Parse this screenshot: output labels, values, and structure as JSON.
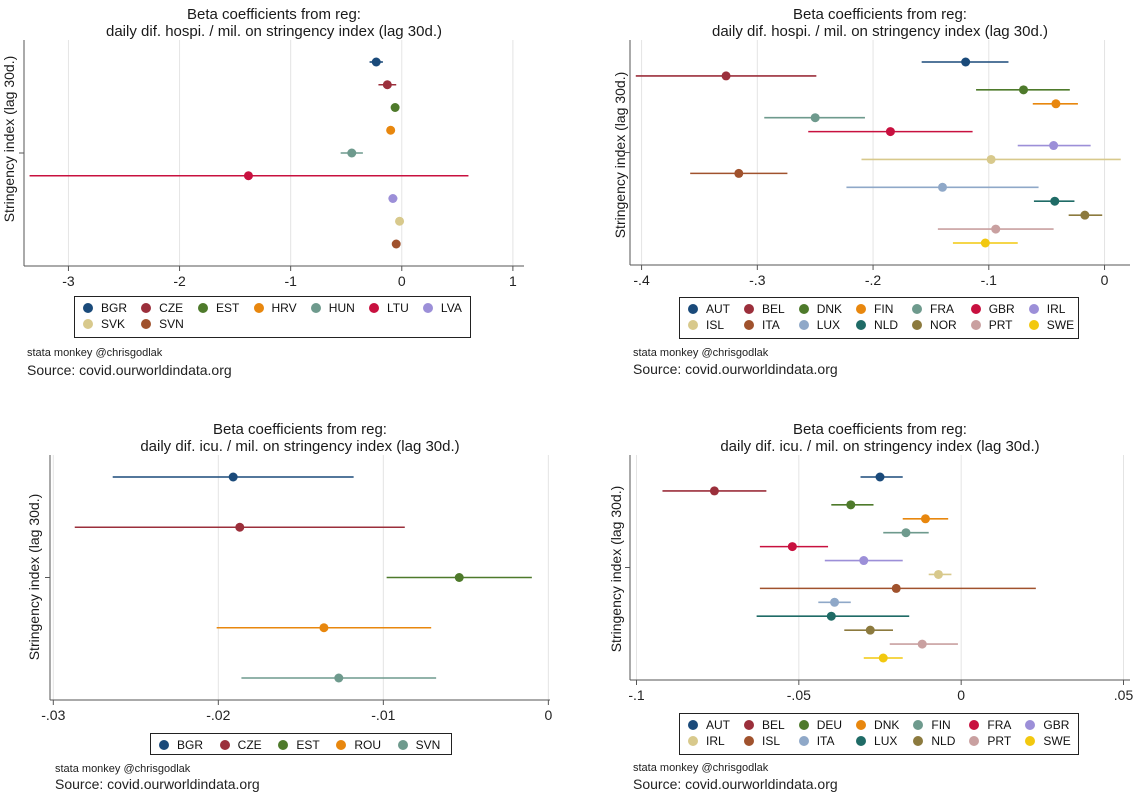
{
  "charts": [
    {
      "title_line1": "Beta coefficients from reg:",
      "title_line2": "daily dif. hospi. / mil. on stringency index (lag 30d.)",
      "ylabel": "Stringency index (lag 30d.)",
      "credit": "stata monkey @chrisgodlak",
      "source": "Source: covid.ourworldindata.org"
    },
    {
      "title_line1": "Beta coefficients from reg:",
      "title_line2": "daily dif. hospi. / mil. on stringency index (lag 30d.)",
      "ylabel": "Stringency index (lag 30d.)",
      "credit": "stata monkey @chrisgodlak",
      "source": "Source: covid.ourworldindata.org"
    },
    {
      "title_line1": "Beta coefficients from reg:",
      "title_line2": "daily dif. icu. / mil. on stringency index (lag 30d.)",
      "ylabel": "Stringency index (lag 30d.)",
      "credit": "stata monkey @chrisgodlak",
      "source": "Source: covid.ourworldindata.org"
    },
    {
      "title_line1": "Beta coefficients from reg:",
      "title_line2": "daily dif. icu. / mil. on stringency index (lag 30d.)",
      "ylabel": "Stringency index (lag 30d.)",
      "credit": "stata monkey @chrisgodlak",
      "source": "Source: covid.ourworldindata.org"
    }
  ],
  "chart_data": [
    {
      "type": "scatter",
      "title": "Beta coefficients from reg: daily dif. hospi. / mil. on stringency index (lag 30d.)",
      "ylabel": "Stringency index (lag 30d.)",
      "xlim": [
        -3.4,
        1.1
      ],
      "xticks": [
        -3,
        -2,
        -1,
        0,
        1
      ],
      "tick_labels": [
        "-3",
        "-2",
        "-1",
        "0",
        "1"
      ],
      "legend_placement": "bottom",
      "legend_columns": 7,
      "series": [
        {
          "name": "BGR",
          "color": "#1a4a7a",
          "estimate": -0.23,
          "ci": [
            -0.29,
            -0.17
          ]
        },
        {
          "name": "CZE",
          "color": "#9b2f3b",
          "estimate": -0.13,
          "ci": [
            -0.21,
            -0.05
          ]
        },
        {
          "name": "EST",
          "color": "#4e7a2b",
          "estimate": -0.06,
          "ci": [
            -0.09,
            -0.03
          ]
        },
        {
          "name": "HRV",
          "color": "#e8870e",
          "estimate": -0.1,
          "ci": [
            -0.13,
            -0.07
          ]
        },
        {
          "name": "HUN",
          "color": "#6e9a8d",
          "estimate": -0.45,
          "ci": [
            -0.55,
            -0.35
          ]
        },
        {
          "name": "LTU",
          "color": "#c8103f",
          "estimate": -1.38,
          "ci": [
            -3.35,
            0.6
          ]
        },
        {
          "name": "LVA",
          "color": "#9c8fd8",
          "estimate": -0.08,
          "ci": [
            -0.12,
            -0.04
          ]
        },
        {
          "name": "SVK",
          "color": "#d8c98c",
          "estimate": -0.02,
          "ci": [
            -0.04,
            0.0
          ]
        },
        {
          "name": "SVN",
          "color": "#a0522d",
          "estimate": -0.05,
          "ci": [
            -0.07,
            -0.03
          ]
        }
      ]
    },
    {
      "type": "scatter",
      "title": "Beta coefficients from reg: daily dif. hospi. / mil. on stringency index (lag 30d.)",
      "ylabel": "Stringency index (lag 30d.)",
      "xlim": [
        -0.41,
        0.022
      ],
      "xticks": [
        -0.4,
        -0.3,
        -0.2,
        -0.1,
        0
      ],
      "tick_labels": [
        "-.4",
        "-.3",
        "-.2",
        "-.1",
        "0"
      ],
      "legend_placement": "bottom",
      "legend_columns": 7,
      "series": [
        {
          "name": "AUT",
          "color": "#1a4a7a",
          "estimate": -0.12,
          "ci": [
            -0.158,
            -0.083
          ]
        },
        {
          "name": "BEL",
          "color": "#9b2f3b",
          "estimate": -0.327,
          "ci": [
            -0.405,
            -0.249
          ]
        },
        {
          "name": "DNK",
          "color": "#4e7a2b",
          "estimate": -0.07,
          "ci": [
            -0.111,
            -0.03
          ]
        },
        {
          "name": "FIN",
          "color": "#e8870e",
          "estimate": -0.042,
          "ci": [
            -0.062,
            -0.023
          ]
        },
        {
          "name": "FRA",
          "color": "#6e9a8d",
          "estimate": -0.25,
          "ci": [
            -0.294,
            -0.207
          ]
        },
        {
          "name": "GBR",
          "color": "#c8103f",
          "estimate": -0.185,
          "ci": [
            -0.256,
            -0.114
          ]
        },
        {
          "name": "IRL",
          "color": "#9c8fd8",
          "estimate": -0.044,
          "ci": [
            -0.075,
            -0.012
          ]
        },
        {
          "name": "ISL",
          "color": "#d8c98c",
          "estimate": -0.098,
          "ci": [
            -0.21,
            0.014
          ]
        },
        {
          "name": "ITA",
          "color": "#a0522d",
          "estimate": -0.316,
          "ci": [
            -0.358,
            -0.274
          ]
        },
        {
          "name": "LUX",
          "color": "#8fa8c8",
          "estimate": -0.14,
          "ci": [
            -0.223,
            -0.057
          ]
        },
        {
          "name": "NLD",
          "color": "#1f6b66",
          "estimate": -0.043,
          "ci": [
            -0.061,
            -0.026
          ]
        },
        {
          "name": "NOR",
          "color": "#8c7a3e",
          "estimate": -0.017,
          "ci": [
            -0.031,
            -0.002
          ]
        },
        {
          "name": "PRT",
          "color": "#c9a0a0",
          "estimate": -0.094,
          "ci": [
            -0.144,
            -0.044
          ]
        },
        {
          "name": "SWE",
          "color": "#f2c80f",
          "estimate": -0.103,
          "ci": [
            -0.131,
            -0.075
          ]
        }
      ]
    },
    {
      "type": "scatter",
      "title": "Beta coefficients from reg: daily dif. icu. / mil. on stringency index (lag 30d.)",
      "ylabel": "Stringency index (lag 30d.)",
      "xlim": [
        -0.0302,
        0.0001
      ],
      "xticks": [
        -0.03,
        -0.02,
        -0.01,
        0
      ],
      "tick_labels": [
        "-.03",
        "-.02",
        "-.01",
        "0"
      ],
      "legend_placement": "bottom",
      "legend_columns": 5,
      "series": [
        {
          "name": "BGR",
          "color": "#1a4a7a",
          "estimate": -0.0191,
          "ci": [
            -0.0264,
            -0.0118
          ]
        },
        {
          "name": "CZE",
          "color": "#9b2f3b",
          "estimate": -0.0187,
          "ci": [
            -0.0287,
            -0.0087
          ]
        },
        {
          "name": "EST",
          "color": "#4e7a2b",
          "estimate": -0.0054,
          "ci": [
            -0.0098,
            -0.001
          ]
        },
        {
          "name": "ROU",
          "color": "#e8870e",
          "estimate": -0.0136,
          "ci": [
            -0.0201,
            -0.0071
          ]
        },
        {
          "name": "SVN",
          "color": "#6e9a8d",
          "estimate": -0.0127,
          "ci": [
            -0.0186,
            -0.0068
          ]
        }
      ]
    },
    {
      "type": "scatter",
      "title": "Beta coefficients from reg: daily dif. icu. / mil. on stringency index (lag 30d.)",
      "ylabel": "Stringency index (lag 30d.)",
      "xlim": [
        -0.102,
        0.052
      ],
      "xticks": [
        -0.1,
        -0.05,
        0,
        0.05
      ],
      "tick_labels": [
        "-.1",
        "-.05",
        "0",
        ".05"
      ],
      "legend_placement": "bottom",
      "legend_columns": 7,
      "series": [
        {
          "name": "AUT",
          "color": "#1a4a7a",
          "estimate": -0.025,
          "ci": [
            -0.031,
            -0.018
          ]
        },
        {
          "name": "BEL",
          "color": "#9b2f3b",
          "estimate": -0.076,
          "ci": [
            -0.092,
            -0.06
          ]
        },
        {
          "name": "DEU",
          "color": "#4e7a2b",
          "estimate": -0.034,
          "ci": [
            -0.04,
            -0.027
          ]
        },
        {
          "name": "DNK",
          "color": "#e8870e",
          "estimate": -0.011,
          "ci": [
            -0.018,
            -0.004
          ]
        },
        {
          "name": "FIN",
          "color": "#6e9a8d",
          "estimate": -0.017,
          "ci": [
            -0.024,
            -0.01
          ]
        },
        {
          "name": "FRA",
          "color": "#c8103f",
          "estimate": -0.052,
          "ci": [
            -0.062,
            -0.041
          ]
        },
        {
          "name": "GBR",
          "color": "#9c8fd8",
          "estimate": -0.03,
          "ci": [
            -0.042,
            -0.018
          ]
        },
        {
          "name": "IRL",
          "color": "#d8c98c",
          "estimate": -0.007,
          "ci": [
            -0.01,
            -0.003
          ]
        },
        {
          "name": "ISL",
          "color": "#a0522d",
          "estimate": -0.02,
          "ci": [
            -0.062,
            0.023
          ]
        },
        {
          "name": "ITA",
          "color": "#8fa8c8",
          "estimate": -0.039,
          "ci": [
            -0.044,
            -0.034
          ]
        },
        {
          "name": "LUX",
          "color": "#1f6b66",
          "estimate": -0.04,
          "ci": [
            -0.063,
            -0.016
          ]
        },
        {
          "name": "NLD",
          "color": "#8c7a3e",
          "estimate": -0.028,
          "ci": [
            -0.036,
            -0.021
          ]
        },
        {
          "name": "PRT",
          "color": "#c9a0a0",
          "estimate": -0.012,
          "ci": [
            -0.022,
            -0.001
          ]
        },
        {
          "name": "SWE",
          "color": "#f2c80f",
          "estimate": -0.024,
          "ci": [
            -0.03,
            -0.018
          ]
        }
      ]
    }
  ]
}
